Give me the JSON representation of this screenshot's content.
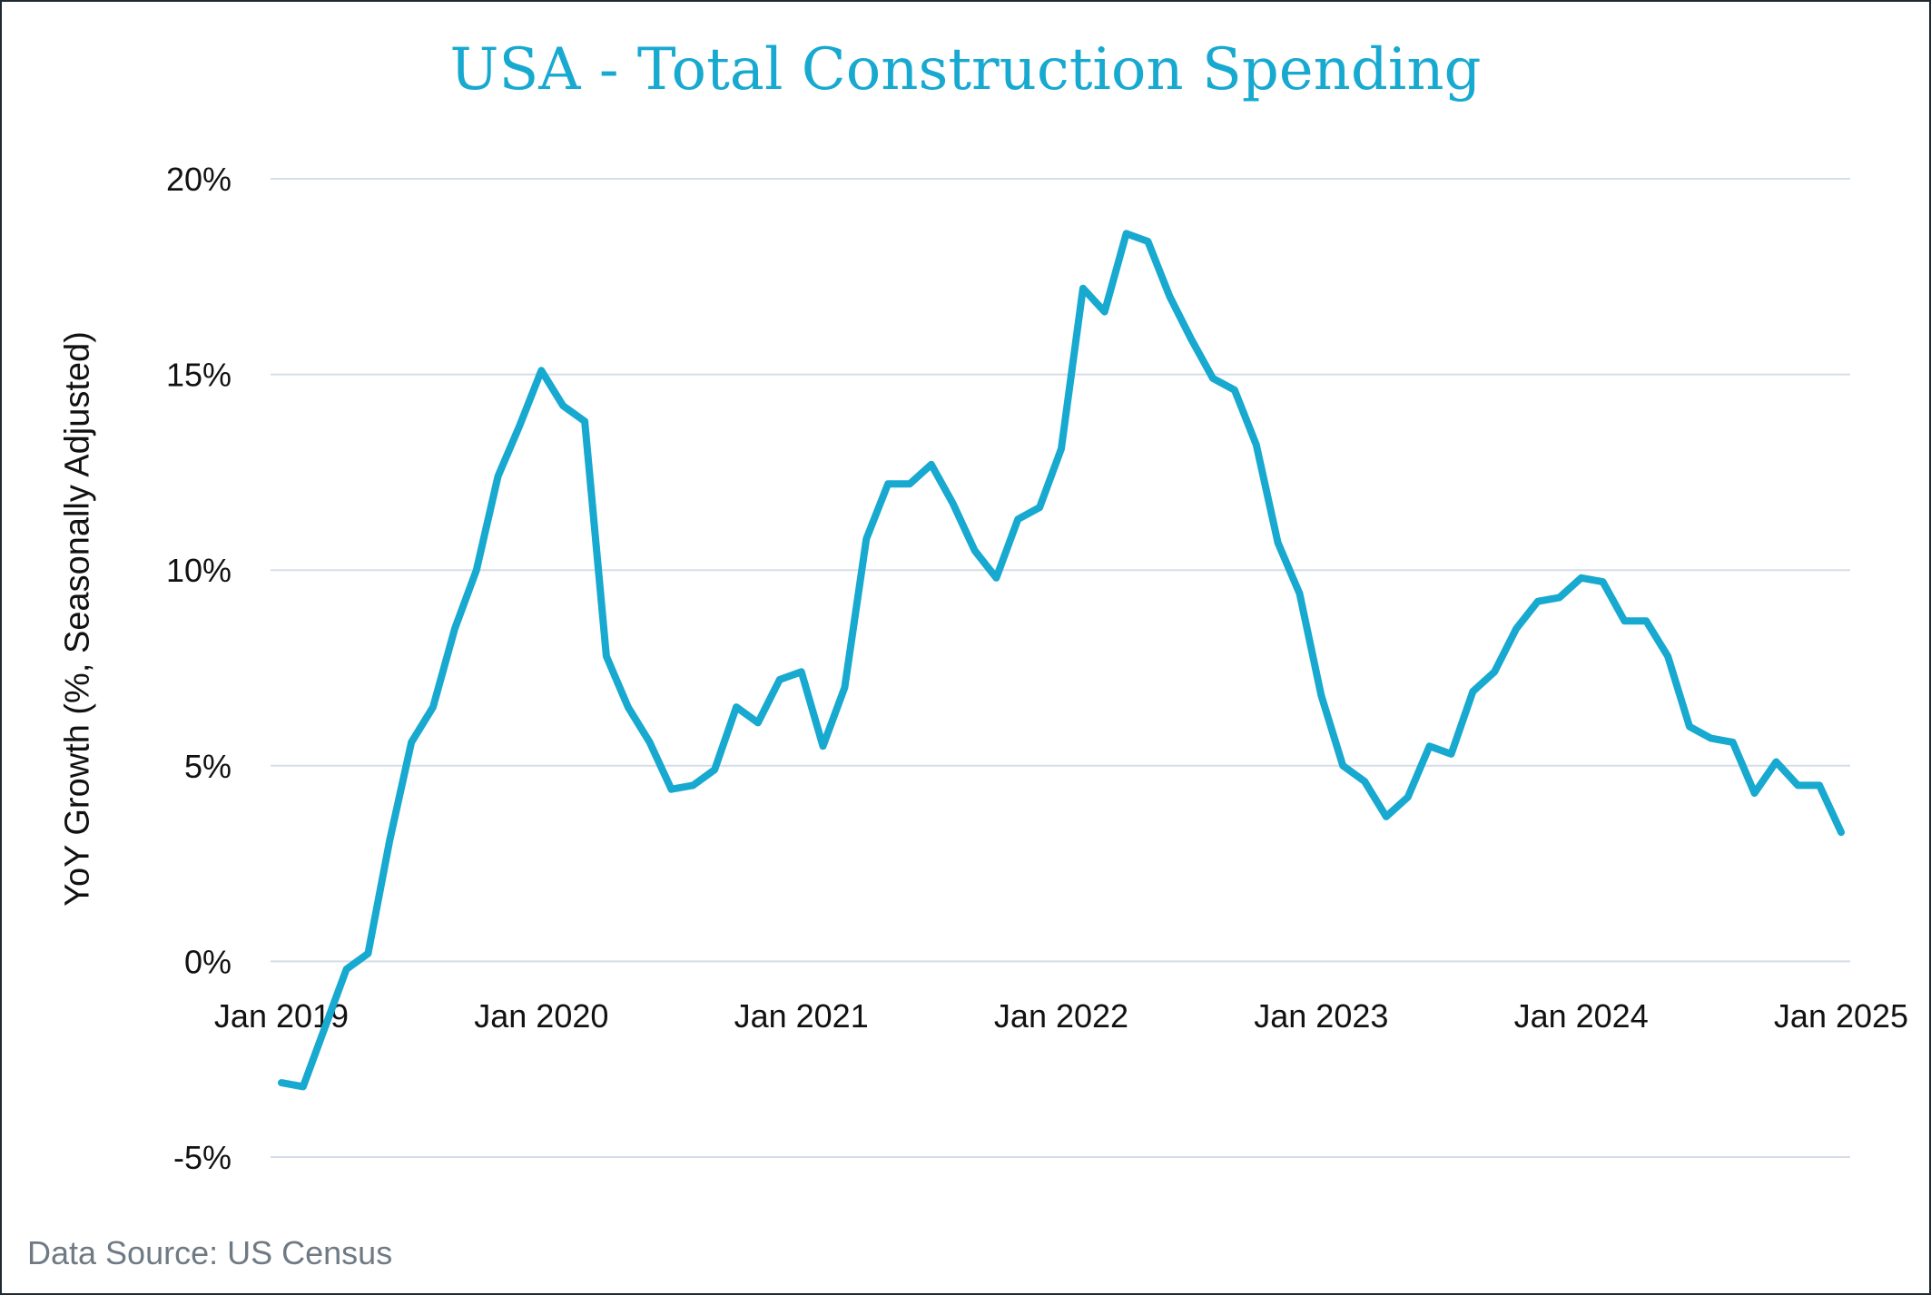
{
  "chart_data": {
    "type": "line",
    "title": "USA - Total Construction Spending",
    "ylabel": "YoY Growth (%, Seasonally Adjusted)",
    "xlabel": "",
    "ylim": [
      -5,
      20
    ],
    "yticks": [
      "20%",
      "15%",
      "10%",
      "5%",
      "0%",
      "-5%"
    ],
    "ytick_values": [
      20,
      15,
      10,
      5,
      0,
      -5
    ],
    "xticks": [
      "Jan 2019",
      "Jan 2020",
      "Jan 2021",
      "Jan 2022",
      "Jan 2023",
      "Jan 2024",
      "Jan 2025"
    ],
    "xtick_month_index": [
      0,
      12,
      24,
      36,
      48,
      60,
      72
    ],
    "x_start": "Jan 2019",
    "grid": true,
    "line_color": "#17a9cf",
    "series": [
      {
        "values": [
          -3.1,
          -3.2,
          -1.7,
          -0.2,
          0.2,
          3.1,
          5.6,
          6.5,
          8.5,
          10.0,
          12.4,
          13.7,
          15.1,
          14.2,
          13.8,
          7.8,
          6.5,
          5.6,
          4.4,
          4.5,
          4.9,
          6.5,
          6.1,
          7.2,
          7.4,
          5.5,
          7.0,
          10.8,
          12.2,
          12.2,
          12.7,
          11.7,
          10.5,
          9.8,
          11.3,
          11.6,
          13.1,
          17.2,
          16.6,
          18.6,
          18.4,
          17.0,
          15.9,
          14.9,
          14.6,
          13.2,
          10.7,
          9.4,
          6.8,
          5.0,
          4.6,
          3.7,
          4.2,
          5.5,
          5.3,
          6.9,
          7.4,
          8.5,
          9.2,
          9.3,
          9.8,
          9.7,
          8.7,
          8.7,
          7.8,
          6.0,
          5.7,
          5.6,
          4.3,
          5.1,
          4.5,
          4.5,
          3.3
        ]
      }
    ]
  },
  "footer": {
    "source": "Data Source: US Census"
  }
}
